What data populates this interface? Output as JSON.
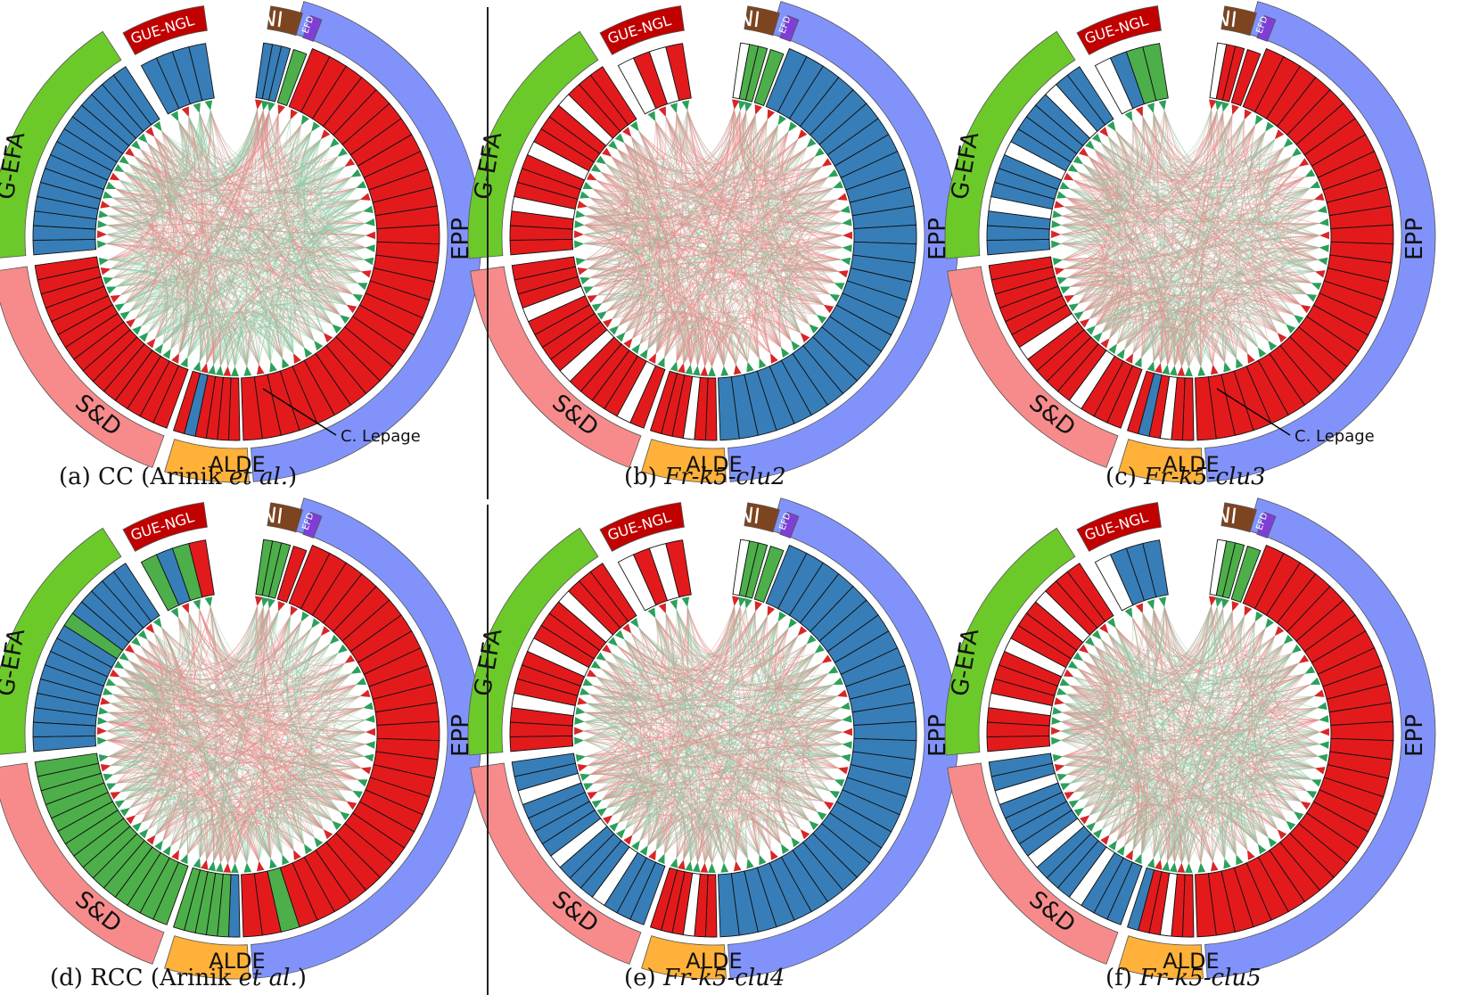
{
  "colors": {
    "red": "#e31a1c",
    "blue": "#377eb8",
    "green": "#4daf4a",
    "white": "#ffffff",
    "edge_pos": "#2ca05a",
    "edge_neg": "#d62728",
    "group_EPP": "#8193fb",
    "group_ALDE": "#ffb13a",
    "group_SD": "#f78b8b",
    "group_GEFA": "#6cc92a",
    "group_GUENGL": "#c10000",
    "group_NI": "#7d4420",
    "group_EFD": "#7f3fd6"
  },
  "groups": [
    {
      "id": "EPP",
      "label": "EPP",
      "count": 29
    },
    {
      "id": "ALDE",
      "label": "ALDE",
      "count": 6
    },
    {
      "id": "SD",
      "label": "S&D",
      "count": 15
    },
    {
      "id": "GEFA",
      "label": "G-EFA",
      "count": 15
    },
    {
      "id": "GUENGL",
      "label": "GUE-NGL",
      "count": 4
    },
    {
      "id": "NI",
      "label": "NI",
      "count": 3
    },
    {
      "id": "EFD",
      "label": "EFD",
      "count": 1
    }
  ],
  "panels": [
    {
      "id": "a",
      "caption_pre": "(a) CC (Arinik ",
      "caption_it": "et al.",
      "caption_post": ")",
      "annotation": "C. Lepage",
      "mix": 0.22,
      "colors": {
        "EPP": "r*29",
        "ALDE": "r,r,r,r,b,r",
        "SD": "r*15",
        "GEFA": "b*15",
        "GUENGL": "b*4",
        "NI": "b*3",
        "EFD": "g"
      }
    },
    {
      "id": "b",
      "caption_pre": "(b) ",
      "caption_it": "Fr-k5-clu2",
      "caption_post": "",
      "annotation": "",
      "mix": 0.7,
      "colors": {
        "EPP": "b*29",
        "ALDE": "r,r,w,r,r,r",
        "SD": "r,w,r,r,r,r,w,r,r,r,r,w,r,r,r",
        "GEFA": "r,r,r,w,r,r,r,w,r,r,r,w,r,r,r",
        "GUENGL": "w,r,w,r",
        "NI": "w,g,g",
        "EFD": "g"
      }
    },
    {
      "id": "c",
      "caption_pre": "(c) ",
      "caption_it": "Fr-k5-clu3",
      "caption_post": "",
      "annotation": "C. Lepage",
      "mix": 0.55,
      "colors": {
        "EPP": "r*29",
        "ALDE": "r,r,w,r,b,r",
        "SD": "r,r,r,w,r,r,r,r,w,r,r,r,r,r,r",
        "GEFA": "b,b,b,w,b,b,b,w,b,b,b,b,w,b,b",
        "GUENGL": "w,b,g,g",
        "NI": "w,r,r",
        "EFD": "r"
      }
    },
    {
      "id": "d",
      "caption_pre": "(d) RCC (Arinik ",
      "caption_it": "et al.",
      "caption_post": ")",
      "annotation": "",
      "mix": 0.25,
      "colors": {
        "EPP": "r,r,r,r,r,r,r,r,r,r,r,r,r,r,r,r,r,r,r,r,r,r,r,r,r,r,g,r,r",
        "ALDE": "b,g,g,g,g,g",
        "SD": "g*15",
        "GEFA": "b,b,b,b,b,b,b,b,b,g,b,b,b,b,b",
        "GUENGL": "g,b,g,r",
        "NI": "g*3",
        "EFD": "r"
      }
    },
    {
      "id": "e",
      "caption_pre": "(e) ",
      "caption_it": "Fr-k5-clu4",
      "caption_post": "",
      "annotation": "",
      "mix": 0.5,
      "colors": {
        "EPP": "b*29",
        "ALDE": "r,r,w,r,r,r",
        "SD": "b,b,b,w,b,b,b,w,b,b,b,b,w,b,b",
        "GEFA": "r,r,r,w,r,r,r,w,r,r,r,w,r,r,r",
        "GUENGL": "w,r,w,r",
        "NI": "w,g,g",
        "EFD": "g"
      }
    },
    {
      "id": "f",
      "caption_pre": "(f) ",
      "caption_it": "Fr-k5-clu5",
      "caption_post": "",
      "annotation": "",
      "mix": 0.5,
      "colors": {
        "EPP": "r*29",
        "ALDE": "r,r,w,r,r,b",
        "SD": "b,b,b,w,b,b,b,w,b,b,b,b,w,b,b",
        "GEFA": "r,r,r,w,r,r,r,w,r,r,r,w,r,r,r",
        "GUENGL": "w,b,b,b",
        "NI": "w,g,g",
        "EFD": "g"
      }
    }
  ]
}
